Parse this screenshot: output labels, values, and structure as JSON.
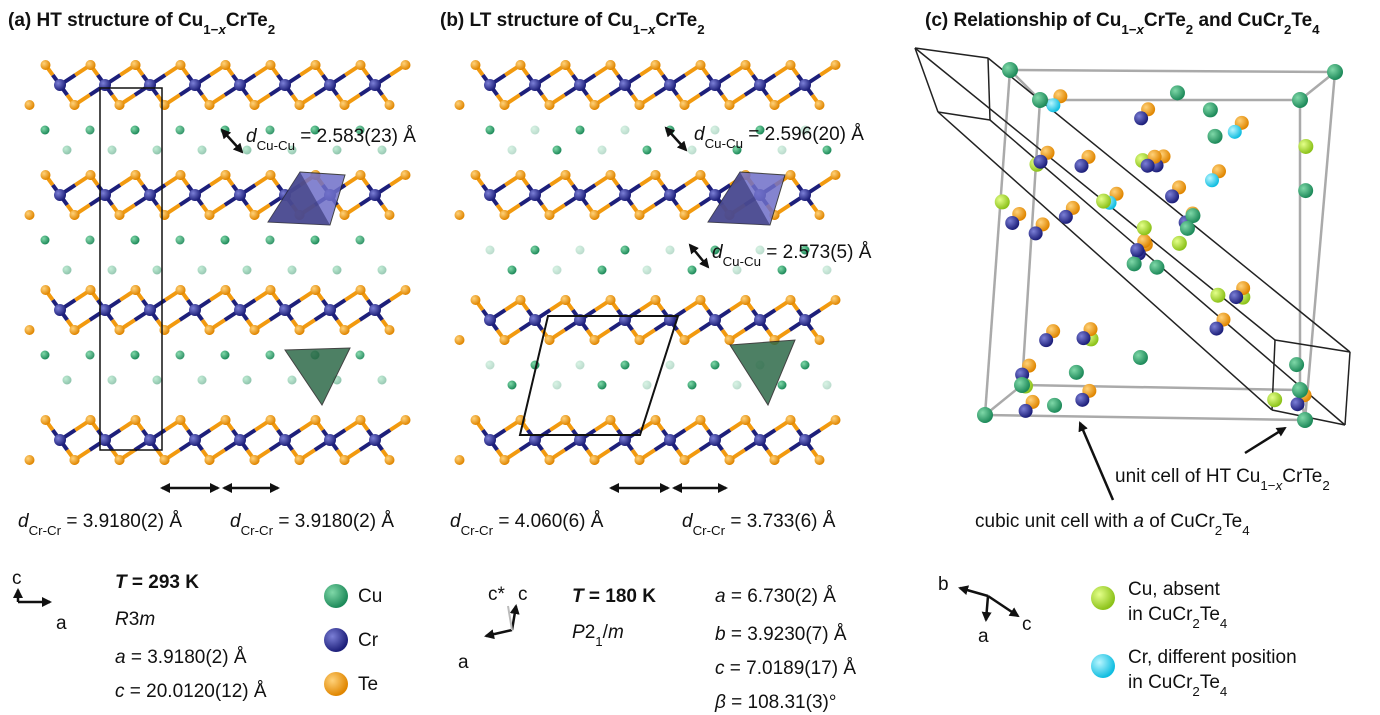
{
  "panels": [
    {
      "title": [
        "(a) HT structure of Cu",
        "1−",
        "x",
        "CrTe",
        "2"
      ],
      "cu_cu": [
        [
          "d",
          "Cu-Cu",
          " = 2.583(23) Å"
        ]
      ],
      "cr_cr": [
        [
          "d",
          "Cr-Cr",
          " = 3.9180(2) Å"
        ],
        [
          "d",
          "Cr-Cr",
          " = 3.9180(2) Å"
        ]
      ],
      "axes": [
        "c",
        "a"
      ],
      "temperature": [
        "T",
        " = 293 K"
      ],
      "space_group": [
        "R",
        "3",
        "m"
      ],
      "parameters": [
        [
          "a",
          " = 3.9180(2) Å"
        ],
        [
          "c",
          " = 20.0120(12) Å"
        ]
      ],
      "legend": [
        "Cu",
        "Cr",
        "Te"
      ]
    },
    {
      "title": [
        "(b) LT structure of Cu",
        "1−",
        "x",
        "CrTe",
        "2"
      ],
      "cu_cu": [
        [
          "d",
          "Cu-Cu",
          " = 2.596(20) Å"
        ],
        [
          "d",
          "Cu-Cu",
          " = 2.573(5) Å"
        ]
      ],
      "cr_cr": [
        [
          "d",
          "Cr-Cr",
          " = 4.060(6) Å"
        ],
        [
          "d",
          "Cr-Cr",
          " = 3.733(6) Å"
        ]
      ],
      "axes": [
        "c*",
        "c",
        "a"
      ],
      "temperature": [
        "T",
        " = 180 K"
      ],
      "space_group": [
        "P",
        "2",
        "1",
        "/",
        "m"
      ],
      "parameters": [
        [
          "a",
          " = 6.730(2) Å"
        ],
        [
          "b",
          " = 3.9230(7) Å"
        ],
        [
          "c",
          " = 7.0189(17) Å"
        ],
        [
          "β",
          " = 108.31(3)°"
        ]
      ]
    },
    {
      "title": [
        "(c) Relationship of Cu",
        "1−",
        "x",
        "CrTe",
        "2",
        " and CuCr",
        "2",
        "Te",
        "4"
      ],
      "ht_cell_label": [
        "unit cell of HT Cu",
        "1−",
        "x",
        "CrTe",
        "2"
      ],
      "cubic_cell_label": [
        "cubic unit cell with ",
        "a",
        " of CuCr",
        "2",
        "Te",
        "4"
      ],
      "axes": [
        "b",
        "a",
        "c"
      ],
      "legend": [
        {
          "line1": "Cu, absent",
          "line2": [
            "in CuCr",
            "2",
            "Te",
            "4"
          ]
        },
        {
          "line1": "Cr, different position",
          "line2": [
            "in CuCr",
            "2",
            "Te",
            "4"
          ]
        }
      ]
    }
  ]
}
